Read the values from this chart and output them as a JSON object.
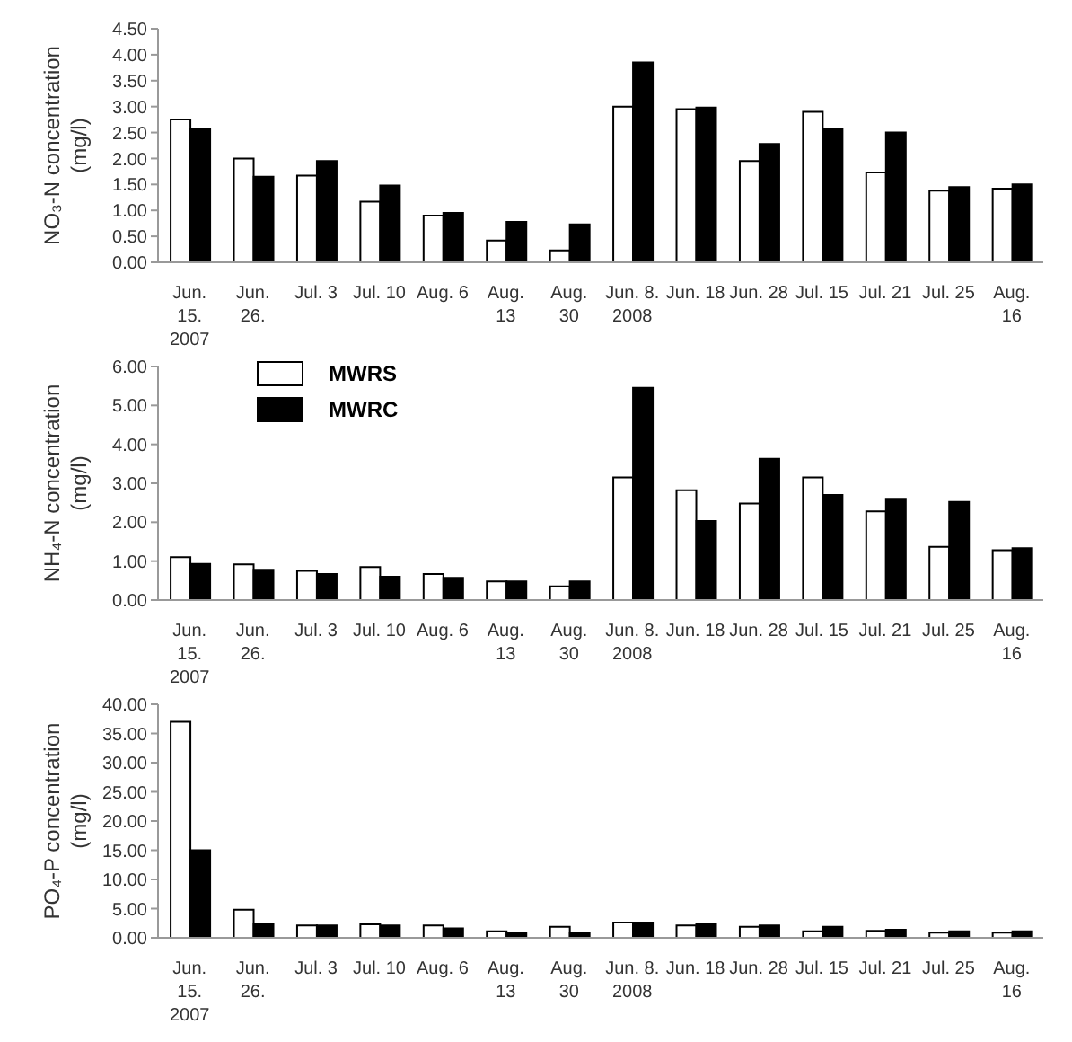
{
  "chart_data": [
    {
      "type": "bar",
      "ylabel": "NO₃-N concentration\n(mg/l)",
      "categories": [
        "Jun.\n15.\n2007",
        "Jun.\n26.",
        "Jul. 3",
        "Jul. 10",
        "Aug. 6",
        "Aug.\n13",
        "Aug.\n30",
        "Jun. 8.\n2008",
        "Jun. 18",
        "Jun. 28",
        "Jul. 15",
        "Jul. 21",
        "Jul. 25",
        "Aug.\n16"
      ],
      "series": [
        {
          "color": "#ffffff",
          "values": [
            2.75,
            2.0,
            1.67,
            1.17,
            0.9,
            0.42,
            0.23,
            3.0,
            2.95,
            1.95,
            2.9,
            1.73,
            1.38,
            1.42
          ]
        },
        {
          "color": "#000000",
          "values": [
            2.58,
            1.65,
            1.95,
            1.48,
            0.95,
            0.78,
            0.73,
            3.85,
            2.98,
            2.28,
            2.57,
            2.5,
            1.45,
            1.5
          ]
        }
      ],
      "ylim": [
        0,
        4.5
      ],
      "yticks": [
        {
          "value": 0,
          "label": "0.00"
        },
        {
          "value": 0.5,
          "label": "0.50"
        },
        {
          "value": 1,
          "label": "1.00"
        },
        {
          "value": 1.5,
          "label": "1.50"
        },
        {
          "value": 2,
          "label": "2.00"
        },
        {
          "value": 2.5,
          "label": "2.50"
        },
        {
          "value": 3,
          "label": "3.00"
        },
        {
          "value": 3.5,
          "label": "3.50"
        },
        {
          "value": 4,
          "label": "4.00"
        },
        {
          "value": 4.5,
          "label": "4.50"
        }
      ],
      "grid": false,
      "legend": false
    },
    {
      "type": "bar",
      "ylabel": "NH₄-N concentration\n(mg/l)",
      "categories": [
        "Jun.\n15.\n2007",
        "Jun.\n26.",
        "Jul. 3",
        "Jul. 10",
        "Aug. 6",
        "Aug.\n13",
        "Aug.\n30",
        "Jun. 8.\n2008",
        "Jun. 18",
        "Jun. 28",
        "Jul. 15",
        "Jul. 21",
        "Jul. 25",
        "Aug.\n16"
      ],
      "series": [
        {
          "name": "MWRS",
          "color": "#ffffff",
          "values": [
            1.1,
            0.92,
            0.75,
            0.85,
            0.67,
            0.48,
            0.35,
            3.15,
            2.82,
            2.48,
            3.15,
            2.28,
            1.37,
            1.28
          ]
        },
        {
          "name": "MWRC",
          "color": "#000000",
          "values": [
            0.93,
            0.78,
            0.67,
            0.6,
            0.57,
            0.48,
            0.48,
            5.45,
            2.03,
            3.63,
            2.7,
            2.6,
            2.52,
            1.33
          ]
        }
      ],
      "ylim": [
        0,
        6
      ],
      "yticks": [
        {
          "value": 0,
          "label": "0.00"
        },
        {
          "value": 1,
          "label": "1.00"
        },
        {
          "value": 2,
          "label": "2.00"
        },
        {
          "value": 3,
          "label": "3.00"
        },
        {
          "value": 4,
          "label": "4.00"
        },
        {
          "value": 5,
          "label": "5.00"
        },
        {
          "value": 6,
          "label": "6.00"
        }
      ],
      "grid": false,
      "legend": "top left"
    },
    {
      "type": "bar",
      "ylabel": "PO₄-P concentration\n(mg/l)",
      "categories": [
        "Jun.\n15.\n2007",
        "Jun.\n26.",
        "Jul. 3",
        "Jul. 10",
        "Aug. 6",
        "Aug.\n13",
        "Aug.\n30",
        "Jun. 8.\n2008",
        "Jun. 18",
        "Jun. 28",
        "Jul. 15",
        "Jul. 21",
        "Jul. 25",
        "Aug.\n16"
      ],
      "series": [
        {
          "color": "#ffffff",
          "values": [
            37.0,
            4.8,
            2.1,
            2.3,
            2.1,
            1.1,
            1.9,
            2.6,
            2.1,
            1.9,
            1.1,
            1.2,
            0.9,
            0.9
          ]
        },
        {
          "color": "#000000",
          "values": [
            15.0,
            2.3,
            2.1,
            2.1,
            1.6,
            0.9,
            0.9,
            2.6,
            2.3,
            2.1,
            1.9,
            1.4,
            1.1,
            1.1
          ]
        }
      ],
      "ylim": [
        0,
        40
      ],
      "yticks": [
        {
          "value": 0,
          "label": "0.00"
        },
        {
          "value": 5,
          "label": "5.00"
        },
        {
          "value": 10,
          "label": "10.00"
        },
        {
          "value": 15,
          "label": "15.00"
        },
        {
          "value": 20,
          "label": "20.00"
        },
        {
          "value": 25,
          "label": "25.00"
        },
        {
          "value": 30,
          "label": "30.00"
        },
        {
          "value": 35,
          "label": "35.00"
        },
        {
          "value": 40,
          "label": "40.00"
        }
      ],
      "grid": false,
      "legend": false
    }
  ]
}
